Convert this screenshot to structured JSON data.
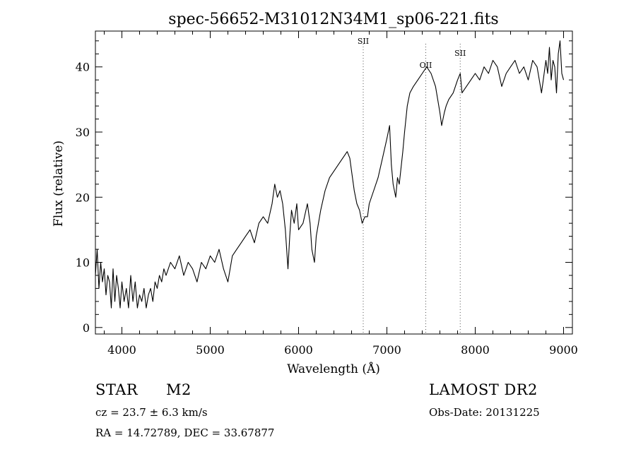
{
  "chart_data": {
    "type": "line",
    "title": "spec-56652-M31012N34M1_sp06-221.fits",
    "xlabel": "Wavelength (Å)",
    "ylabel": "Flux (relative)",
    "xlim": [
      3700,
      9100
    ],
    "ylim": [
      -1,
      45.5
    ],
    "xticks": [
      4000,
      5000,
      6000,
      7000,
      8000,
      9000
    ],
    "yticks": [
      0,
      10,
      20,
      30,
      40
    ],
    "grid": false,
    "line_color": "#000000",
    "series": [
      {
        "x": [
          3700,
          3720,
          3740,
          3760,
          3780,
          3800,
          3820,
          3840,
          3860,
          3880,
          3900,
          3920,
          3940,
          3960,
          3980,
          4000,
          4025,
          4050,
          4075,
          4100,
          4125,
          4150,
          4175,
          4200,
          4225,
          4250,
          4275,
          4300,
          4325,
          4350,
          4375,
          4400,
          4425,
          4450,
          4475,
          4500,
          4550,
          4600,
          4650,
          4700,
          4750,
          4800,
          4850,
          4900,
          4950,
          5000,
          5050,
          5100,
          5150,
          5200,
          5250,
          5300,
          5350,
          5400,
          5450,
          5500,
          5550,
          5600,
          5650,
          5700,
          5730,
          5760,
          5790,
          5820,
          5850,
          5880,
          5900,
          5920,
          5950,
          5980,
          6000,
          6050,
          6100,
          6130,
          6150,
          6180,
          6200,
          6250,
          6300,
          6350,
          6400,
          6450,
          6500,
          6550,
          6580,
          6600,
          6630,
          6660,
          6690,
          6720,
          6750,
          6780,
          6800,
          6850,
          6900,
          6950,
          7000,
          7030,
          7050,
          7070,
          7100,
          7120,
          7140,
          7180,
          7200,
          7230,
          7260,
          7300,
          7350,
          7400,
          7450,
          7500,
          7550,
          7600,
          7620,
          7650,
          7670,
          7700,
          7750,
          7800,
          7830,
          7850,
          7900,
          7950,
          8000,
          8050,
          8100,
          8150,
          8200,
          8250,
          8300,
          8350,
          8400,
          8450,
          8500,
          8550,
          8600,
          8650,
          8700,
          8750,
          8800,
          8820,
          8840,
          8860,
          8880,
          8900,
          8920,
          8940,
          8960,
          8980,
          9000
        ],
        "y": [
          8,
          12,
          6,
          10,
          7,
          9,
          5,
          8,
          7,
          3,
          9,
          4,
          8,
          6,
          3,
          7,
          4,
          6,
          3,
          8,
          4,
          7,
          3,
          5,
          4,
          6,
          3,
          5,
          6,
          4,
          7,
          6,
          8,
          7,
          9,
          8,
          10,
          9,
          11,
          8,
          10,
          9,
          7,
          10,
          9,
          11,
          10,
          12,
          9,
          7,
          11,
          12,
          13,
          14,
          15,
          13,
          16,
          17,
          16,
          19,
          22,
          20,
          21,
          19,
          15,
          9,
          14,
          18,
          16,
          19,
          15,
          16,
          19,
          16,
          12,
          10,
          14,
          18,
          21,
          23,
          24,
          25,
          26,
          27,
          26,
          24,
          21,
          19,
          18,
          16,
          17,
          17,
          19,
          21,
          23,
          26,
          29,
          31,
          25,
          22,
          20,
          23,
          22,
          27,
          30,
          34,
          36,
          37,
          38,
          39,
          40,
          39,
          37,
          33,
          31,
          33,
          34,
          35,
          36,
          38,
          39,
          36,
          37,
          38,
          39,
          38,
          40,
          39,
          41,
          40,
          37,
          39,
          40,
          41,
          39,
          40,
          38,
          41,
          40,
          36,
          41,
          39,
          43,
          38,
          41,
          40,
          36,
          42,
          44,
          39,
          38
        ]
      }
    ],
    "lines": [
      {
        "x": 6732,
        "label": "SII"
      },
      {
        "x": 7440,
        "label": "OII"
      },
      {
        "x": 7830,
        "label": "SII"
      }
    ]
  },
  "info": {
    "class_label": "STAR",
    "subclass_label": "M2",
    "cz_text": "cz = 23.7 ± 6.3 km/s",
    "radec_text": "RA =   14.72789, DEC =   33.67877",
    "survey_label": "LAMOST DR2",
    "obsdate_text": "Obs-Date: 20131225"
  }
}
